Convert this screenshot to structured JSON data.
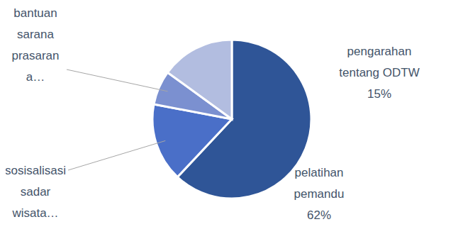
{
  "chart_data": {
    "type": "pie",
    "categories": [
      "pelatihan pemandu",
      "sosisalisasi sadar wisata…",
      "bantuan sarana prasarana…",
      "pengarahan tentang ODTW"
    ],
    "values": [
      62,
      16,
      7,
      15
    ],
    "value_labels": [
      "62%",
      null,
      null,
      "15%"
    ],
    "colors": [
      "#2f5597",
      "#4a6fc8",
      "#7b90d0",
      "#b2bde0"
    ],
    "data_labels": true
  }
}
